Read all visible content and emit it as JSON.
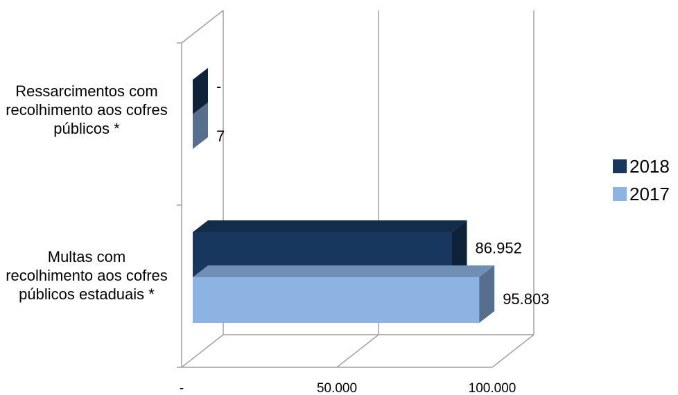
{
  "chart_data": {
    "type": "bar",
    "orientation": "horizontal",
    "three_d": true,
    "categories": [
      "Multas com recolhimento aos cofres públicos estaduais *",
      "Ressarcimentos com recolhimento aos cofres públicos *"
    ],
    "series": [
      {
        "name": "2018",
        "values": [
          86952,
          0
        ],
        "labels": [
          "86.952",
          "-"
        ],
        "color": "#17375e"
      },
      {
        "name": "2017",
        "values": [
          95803,
          7
        ],
        "labels": [
          "95.803",
          "7"
        ],
        "color": "#8db3e2"
      }
    ],
    "xlim": [
      0,
      100000
    ],
    "x_ticks": [
      {
        "value": 0,
        "label": "-"
      },
      {
        "value": 50000,
        "label": "50.000"
      },
      {
        "value": 100000,
        "label": "100.000"
      }
    ],
    "grid": true,
    "legend_position": "right"
  }
}
